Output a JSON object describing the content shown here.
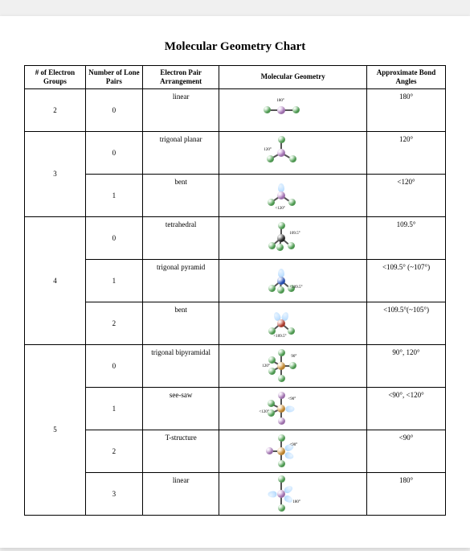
{
  "title": "Molecular Geometry Chart",
  "columns": [
    "# of Electron Groups",
    "Number of Lone Pairs",
    "Electron Pair Arrangement",
    "Molecular Geometry",
    "Approximate Bond Angles"
  ],
  "colors": {
    "green": "#5fbf63",
    "violet": "#c58bd8",
    "black": "#2a2a2a",
    "blue": "#2f5fd6",
    "orange": "#e8a23a",
    "red": "#d14a3a",
    "lone": "#b8dcff"
  },
  "groups": [
    {
      "eg": "2",
      "rows": [
        {
          "lp": "0",
          "arr": "linear",
          "angles": "180°",
          "d": {
            "type": "linear",
            "center": "violet",
            "outers": [
              "green",
              "green"
            ],
            "label": "180°"
          }
        }
      ]
    },
    {
      "eg": "3",
      "rows": [
        {
          "lp": "0",
          "arr": "trigonal planar",
          "angles": "120°",
          "d": {
            "type": "trigplanar",
            "center": "violet",
            "outers": [
              "green",
              "green",
              "green"
            ],
            "label": "120°"
          }
        },
        {
          "lp": "1",
          "arr": "bent",
          "angles": "<120°",
          "d": {
            "type": "bent",
            "center": "violet",
            "outers": [
              "green",
              "green"
            ],
            "lones": 1,
            "label": "<120°"
          }
        }
      ]
    },
    {
      "eg": "4",
      "rows": [
        {
          "lp": "0",
          "arr": "tetrahedral",
          "angles": "109.5°",
          "d": {
            "type": "tetra",
            "center": "black",
            "outers": [
              "green",
              "green",
              "green",
              "green"
            ],
            "label": "109.5°"
          }
        },
        {
          "lp": "1",
          "arr": "trigonal pyramid",
          "angles": "<109.5° (~107°)",
          "d": {
            "type": "trigpyr",
            "center": "blue",
            "outers": [
              "green",
              "green",
              "green"
            ],
            "lones": 1,
            "label": "<109.5°"
          }
        },
        {
          "lp": "2",
          "arr": "bent",
          "angles": "<109.5°(~105°)",
          "d": {
            "type": "bent2",
            "center": "red",
            "outers": [
              "green",
              "green"
            ],
            "lones": 2,
            "label": "<109.5°"
          }
        }
      ]
    },
    {
      "eg": "5",
      "rows": [
        {
          "lp": "0",
          "arr": "trigonal bipyramidal",
          "angles": "90°, 120°",
          "d": {
            "type": "tbp",
            "center": "orange",
            "outers": [
              "green",
              "green",
              "green",
              "green",
              "green"
            ],
            "label1": "90°",
            "label2": "120°"
          }
        },
        {
          "lp": "1",
          "arr": "see-saw",
          "angles": "<90°, <120°",
          "d": {
            "type": "seesaw",
            "center": "orange",
            "outers": [
              "violet",
              "violet",
              "green",
              "green"
            ],
            "lones": 1,
            "label1": "<90°",
            "label2": "<120°"
          }
        },
        {
          "lp": "2",
          "arr": "T-structure",
          "angles": "<90°",
          "d": {
            "type": "tshape",
            "center": "orange",
            "outers": [
              "violet",
              "green",
              "green"
            ],
            "lones": 2,
            "label": "<90°"
          }
        },
        {
          "lp": "3",
          "arr": "linear",
          "angles": "180°",
          "d": {
            "type": "linear180",
            "center": "violet",
            "outers": [
              "green",
              "green"
            ],
            "lones": 3,
            "label": "180°"
          }
        }
      ]
    }
  ]
}
